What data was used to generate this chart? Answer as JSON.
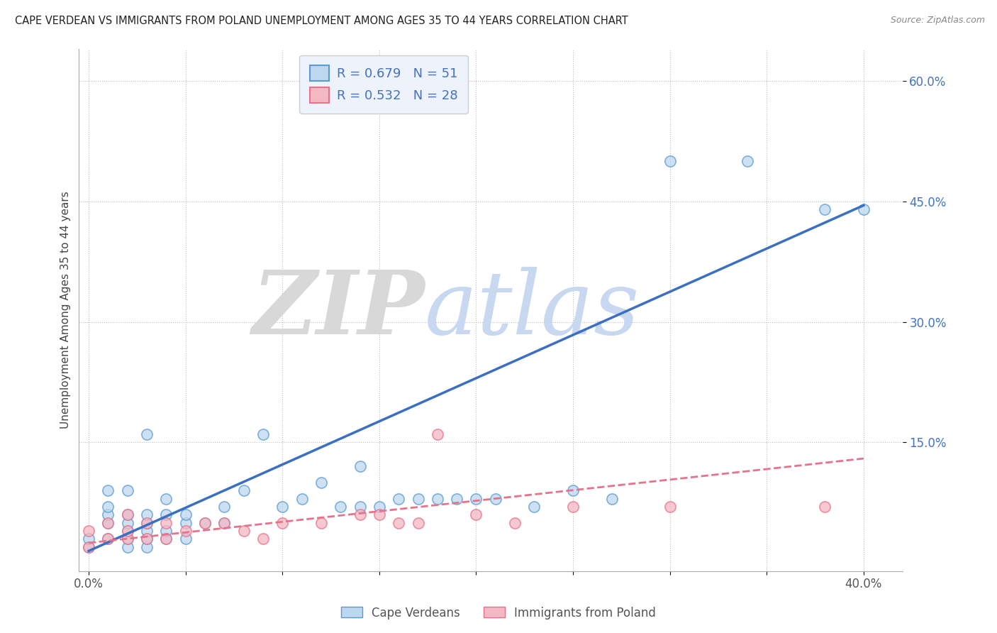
{
  "title": "CAPE VERDEAN VS IMMIGRANTS FROM POLAND UNEMPLOYMENT AMONG AGES 35 TO 44 YEARS CORRELATION CHART",
  "source": "Source: ZipAtlas.com",
  "ylabel": "Unemployment Among Ages 35 to 44 years",
  "xlim": [
    -0.005,
    0.42
  ],
  "ylim": [
    -0.01,
    0.64
  ],
  "xticks": [
    0.0,
    0.05,
    0.1,
    0.15,
    0.2,
    0.25,
    0.3,
    0.35,
    0.4
  ],
  "xticklabels": [
    "0.0%",
    "",
    "",
    "",
    "",
    "",
    "",
    "",
    "40.0%"
  ],
  "ytick_positions": [
    0.15,
    0.3,
    0.45,
    0.6
  ],
  "ytick_labels": [
    "15.0%",
    "30.0%",
    "45.0%",
    "60.0%"
  ],
  "legend1_label": "R = 0.679   N = 51",
  "legend2_label": "R = 0.532   N = 28",
  "blue_edge_color": "#5b9bd5",
  "blue_fill_color": "#bdd7ee",
  "pink_edge_color": "#e8728a",
  "pink_fill_color": "#f4b8c4",
  "watermark_zip": "ZIP",
  "watermark_atlas": "atlas",
  "watermark_zip_color": "#d8d8d8",
  "watermark_atlas_color": "#c8d8f0",
  "blue_scatter_x": [
    0.0,
    0.0,
    0.01,
    0.01,
    0.01,
    0.01,
    0.01,
    0.02,
    0.02,
    0.02,
    0.02,
    0.02,
    0.02,
    0.03,
    0.03,
    0.03,
    0.03,
    0.03,
    0.03,
    0.04,
    0.04,
    0.04,
    0.04,
    0.05,
    0.05,
    0.05,
    0.06,
    0.07,
    0.07,
    0.08,
    0.09,
    0.1,
    0.11,
    0.12,
    0.13,
    0.14,
    0.14,
    0.15,
    0.16,
    0.17,
    0.18,
    0.19,
    0.2,
    0.21,
    0.23,
    0.25,
    0.27,
    0.3,
    0.34,
    0.38,
    0.4
  ],
  "blue_scatter_y": [
    0.02,
    0.03,
    0.03,
    0.05,
    0.06,
    0.07,
    0.09,
    0.02,
    0.03,
    0.04,
    0.05,
    0.06,
    0.09,
    0.02,
    0.03,
    0.04,
    0.05,
    0.06,
    0.16,
    0.03,
    0.04,
    0.06,
    0.08,
    0.03,
    0.05,
    0.06,
    0.05,
    0.05,
    0.07,
    0.09,
    0.16,
    0.07,
    0.08,
    0.1,
    0.07,
    0.07,
    0.12,
    0.07,
    0.08,
    0.08,
    0.08,
    0.08,
    0.08,
    0.08,
    0.07,
    0.09,
    0.08,
    0.5,
    0.5,
    0.44,
    0.44
  ],
  "pink_scatter_x": [
    0.0,
    0.0,
    0.01,
    0.01,
    0.02,
    0.02,
    0.02,
    0.03,
    0.03,
    0.04,
    0.04,
    0.05,
    0.06,
    0.07,
    0.08,
    0.09,
    0.1,
    0.12,
    0.14,
    0.15,
    0.16,
    0.17,
    0.18,
    0.2,
    0.22,
    0.25,
    0.3,
    0.38
  ],
  "pink_scatter_y": [
    0.02,
    0.04,
    0.03,
    0.05,
    0.03,
    0.04,
    0.06,
    0.03,
    0.05,
    0.03,
    0.05,
    0.04,
    0.05,
    0.05,
    0.04,
    0.03,
    0.05,
    0.05,
    0.06,
    0.06,
    0.05,
    0.05,
    0.16,
    0.06,
    0.05,
    0.07,
    0.07,
    0.07
  ],
  "blue_trend_x": [
    0.0,
    0.4
  ],
  "blue_trend_y": [
    0.015,
    0.445
  ],
  "pink_trend_x": [
    0.0,
    0.4
  ],
  "pink_trend_y": [
    0.025,
    0.13
  ],
  "legend_box_color": "#eef2fa",
  "legend_edge_color": "#cccccc",
  "grid_color": "#aaaaaa",
  "grid_style": "dotted",
  "bottom_legend": [
    "Cape Verdeans",
    "Immigrants from Poland"
  ]
}
